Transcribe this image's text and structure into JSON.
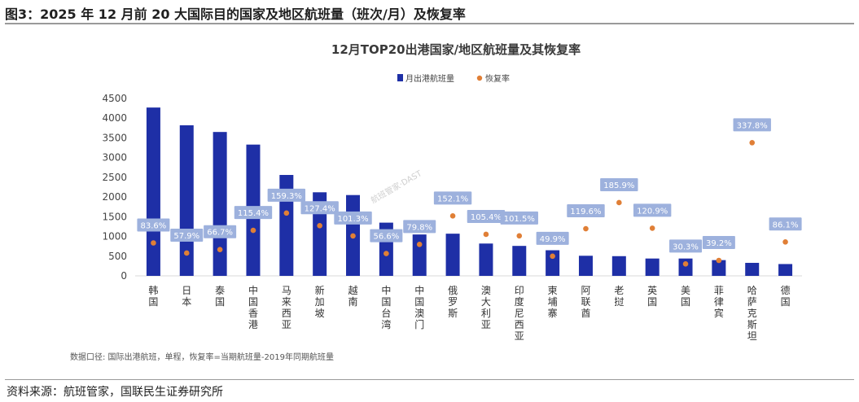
{
  "figure": {
    "title": "图3：2025 年 12 月前 20 大国际目的国家及地区航班量（班次/月）及恢复率",
    "source": "资料来源：航班管家，国联民生证券研究所"
  },
  "chart_data": {
    "type": "bar",
    "title": "12月TOP20出港国家/地区航班量及其恢复率",
    "note": "数据口径: 国际出港航班，单程，恢复率=当期航班量-2019年同期航班量",
    "watermark": "航班管家·DAST",
    "legend": {
      "position": "top-center",
      "bar_label": "月出港航班量",
      "dot_label": "恢复率"
    },
    "ylim": [
      0,
      4500
    ],
    "yticks": [
      0,
      500,
      1000,
      1500,
      2000,
      2500,
      3000,
      3500,
      4000,
      4500
    ],
    "grid": false,
    "colors": {
      "bar": "#1e2fa6",
      "dot": "#e07f36",
      "label_bg": "#9db1dd",
      "label_text": "#ffffff"
    },
    "categories": [
      "韩国",
      "日本",
      "泰国",
      "中国香港",
      "马来西亚",
      "新加坡",
      "越南",
      "中国台湾",
      "中国澳门",
      "俄罗斯",
      "澳大利亚",
      "印度尼西亚",
      "柬埔寨",
      "阿联酋",
      "老挝",
      "英国",
      "美国",
      "菲律宾",
      "哈萨克斯坦",
      "德国"
    ],
    "series": [
      {
        "name": "月出港航班量",
        "values": [
          4270,
          3820,
          3650,
          3330,
          2560,
          2120,
          2050,
          1350,
          1050,
          1070,
          820,
          760,
          650,
          510,
          500,
          440,
          440,
          400,
          330,
          300
        ]
      },
      {
        "name": "恢复率",
        "values": [
          83.6,
          57.9,
          66.7,
          115.4,
          159.3,
          127.4,
          101.3,
          56.6,
          79.8,
          152.1,
          105.4,
          101.5,
          49.9,
          119.6,
          185.9,
          120.9,
          30.3,
          39.2,
          337.8,
          86.1
        ],
        "labels": [
          "83.6%",
          "57.9%",
          "66.7%",
          "115.4%",
          "159.3%",
          "127.4%",
          "101.3%",
          "56.6%",
          "79.8%",
          "152.1%",
          "105.4%",
          "101.5%",
          "49.9%",
          "119.6%",
          "185.9%",
          "120.9%",
          "30.3%",
          "39.2%",
          "337.8%",
          "86.1%"
        ]
      }
    ]
  }
}
